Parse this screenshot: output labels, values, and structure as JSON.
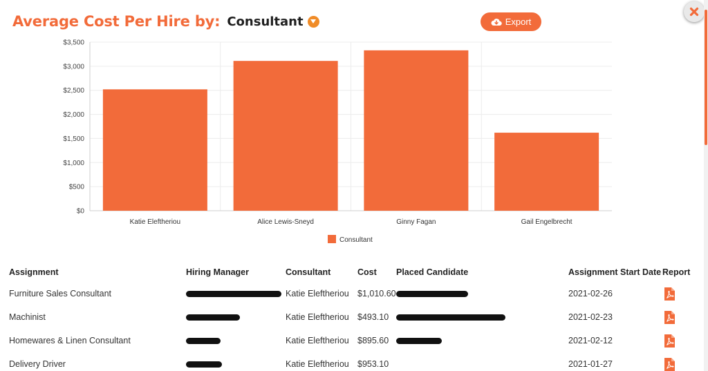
{
  "header": {
    "title": "Average Cost Per Hire by:",
    "group_by_selected": "Consultant",
    "export_label": "Export"
  },
  "colors": {
    "accent": "#f26b3a",
    "bar": "#f26b3a",
    "chevron": "#f08c28"
  },
  "chart_data": {
    "type": "bar",
    "categories": [
      "Katie Eleftheriou",
      "Alice Lewis-Sneyd",
      "Ginny Fagan",
      "Gail Engelbrecht"
    ],
    "series": [
      {
        "name": "Consultant",
        "values": [
          2520,
          3110,
          3330,
          1620
        ]
      }
    ],
    "ylim": [
      0,
      3500
    ],
    "yticks": [
      0,
      500,
      1000,
      1500,
      2000,
      2500,
      3000,
      3500
    ],
    "ytick_labels": [
      "$0",
      "$500",
      "$1,000",
      "$1,500",
      "$2,000",
      "$2,500",
      "$3,000",
      "$3,500"
    ],
    "legend": "bottom-center",
    "grid": true,
    "title": "",
    "xlabel": "",
    "ylabel": ""
  },
  "table": {
    "columns": [
      "Assignment",
      "Hiring Manager",
      "Consultant",
      "Cost",
      "Placed Candidate",
      "Assignment Start Date",
      "Report"
    ],
    "rows": [
      {
        "assignment": "Furniture Sales Consultant",
        "consultant": "Katie Eleftheriou",
        "cost": "$1,010.60",
        "start_date": "2021-02-26"
      },
      {
        "assignment": "Machinist",
        "consultant": "Katie Eleftheriou",
        "cost": "$493.10",
        "start_date": "2021-02-23"
      },
      {
        "assignment": "Homewares & Linen Consultant",
        "consultant": "Katie Eleftheriou",
        "cost": "$895.60",
        "start_date": "2021-02-12"
      },
      {
        "assignment": "Delivery Driver",
        "consultant": "Katie Eleftheriou",
        "cost": "$953.10",
        "start_date": "2021-01-27"
      }
    ]
  }
}
